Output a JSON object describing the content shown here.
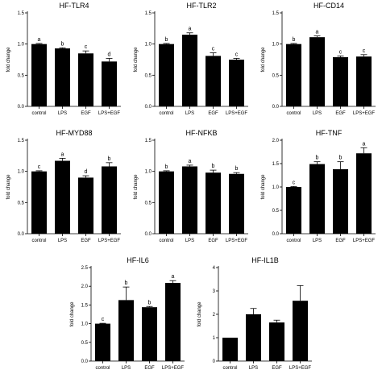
{
  "chart_data": [
    {
      "type": "bar",
      "title": "HF-TLR4",
      "ylabel": "fold change",
      "categories": [
        "control",
        "LPS",
        "EGF",
        "LPS+EGF"
      ],
      "values": [
        1.0,
        0.93,
        0.85,
        0.72
      ],
      "errors": [
        0.01,
        0.01,
        0.04,
        0.05
      ],
      "labels": [
        "a",
        "b",
        "c",
        "d"
      ],
      "ylim": [
        0,
        1.5
      ],
      "yticks": [
        "0.0",
        "0.5",
        "1.0",
        "1.5"
      ]
    },
    {
      "type": "bar",
      "title": "HF-TLR2",
      "ylabel": "fold change",
      "categories": [
        "control",
        "LPS",
        "EGF",
        "LPS+EGF"
      ],
      "values": [
        1.0,
        1.15,
        0.81,
        0.75
      ],
      "errors": [
        0.01,
        0.03,
        0.05,
        0.02
      ],
      "labels": [
        "b",
        "a",
        "c",
        "c"
      ],
      "ylim": [
        0,
        1.5
      ],
      "yticks": [
        "0.0",
        "0.5",
        "1.0",
        "1.5"
      ]
    },
    {
      "type": "bar",
      "title": "HF-CD14",
      "ylabel": "fold change",
      "categories": [
        "control",
        "LPS",
        "EGF",
        "LPS+EGF"
      ],
      "values": [
        1.0,
        1.11,
        0.79,
        0.8
      ],
      "errors": [
        0.01,
        0.02,
        0.02,
        0.03
      ],
      "labels": [
        "b",
        "a",
        "c",
        "c"
      ],
      "ylim": [
        0,
        1.5
      ],
      "yticks": [
        "0.0",
        "0.5",
        "1.0",
        "1.5"
      ]
    },
    {
      "type": "bar",
      "title": "HF-MYD88",
      "ylabel": "fold change",
      "categories": [
        "control",
        "LPS",
        "EGF",
        "LPS+EGF"
      ],
      "values": [
        1.0,
        1.17,
        0.9,
        1.08
      ],
      "errors": [
        0.01,
        0.04,
        0.03,
        0.06
      ],
      "labels": [
        "c",
        "a",
        "d",
        "b"
      ],
      "ylim": [
        0,
        1.5
      ],
      "yticks": [
        "0.0",
        "0.5",
        "1.0",
        "1.5"
      ]
    },
    {
      "type": "bar",
      "title": "HF-NFKB",
      "ylabel": "fold change",
      "categories": [
        "control",
        "LPS",
        "EGF",
        "LPS+EGF"
      ],
      "values": [
        1.0,
        1.08,
        0.98,
        0.96
      ],
      "errors": [
        0.01,
        0.02,
        0.04,
        0.02
      ],
      "labels": [
        "b",
        "a",
        "b",
        "b"
      ],
      "ylim": [
        0,
        1.5
      ],
      "yticks": [
        "0.0",
        "0.5",
        "1.0",
        "1.5"
      ]
    },
    {
      "type": "bar",
      "title": "HF-TNF",
      "ylabel": "fold change",
      "categories": [
        "control",
        "LPS",
        "EGF",
        "LPS+EGF"
      ],
      "values": [
        1.0,
        1.49,
        1.38,
        1.72
      ],
      "errors": [
        0.01,
        0.05,
        0.16,
        0.12
      ],
      "labels": [
        "c",
        "b",
        "b",
        "a"
      ],
      "ylim": [
        0,
        2.0
      ],
      "yticks": [
        "0.0",
        "0.5",
        "1.0",
        "1.5",
        "2.0"
      ]
    },
    {
      "type": "bar",
      "title": "HF-IL6",
      "ylabel": "fold change",
      "categories": [
        "control",
        "LPS",
        "EGF",
        "LPS+EGF"
      ],
      "values": [
        1.0,
        1.63,
        1.44,
        2.09
      ],
      "errors": [
        0.01,
        0.35,
        0.02,
        0.06
      ],
      "labels": [
        "c",
        "b",
        "b",
        "a"
      ],
      "ylim": [
        0,
        2.5
      ],
      "yticks": [
        "0.0",
        "0.5",
        "1.0",
        "1.5",
        "2.0",
        "2.5"
      ]
    },
    {
      "type": "bar",
      "title": "HF-IL1B",
      "ylabel": "fold change",
      "categories": [
        "control",
        "LPS",
        "EGF",
        "LPS+EGF"
      ],
      "values": [
        1.0,
        2.0,
        1.65,
        2.58
      ],
      "errors": [
        0.0,
        0.25,
        0.1,
        0.65
      ],
      "labels": [
        "",
        "",
        "",
        ""
      ],
      "ylim": [
        0,
        4
      ],
      "yticks": [
        "0",
        "1",
        "2",
        "3",
        "4"
      ]
    }
  ]
}
